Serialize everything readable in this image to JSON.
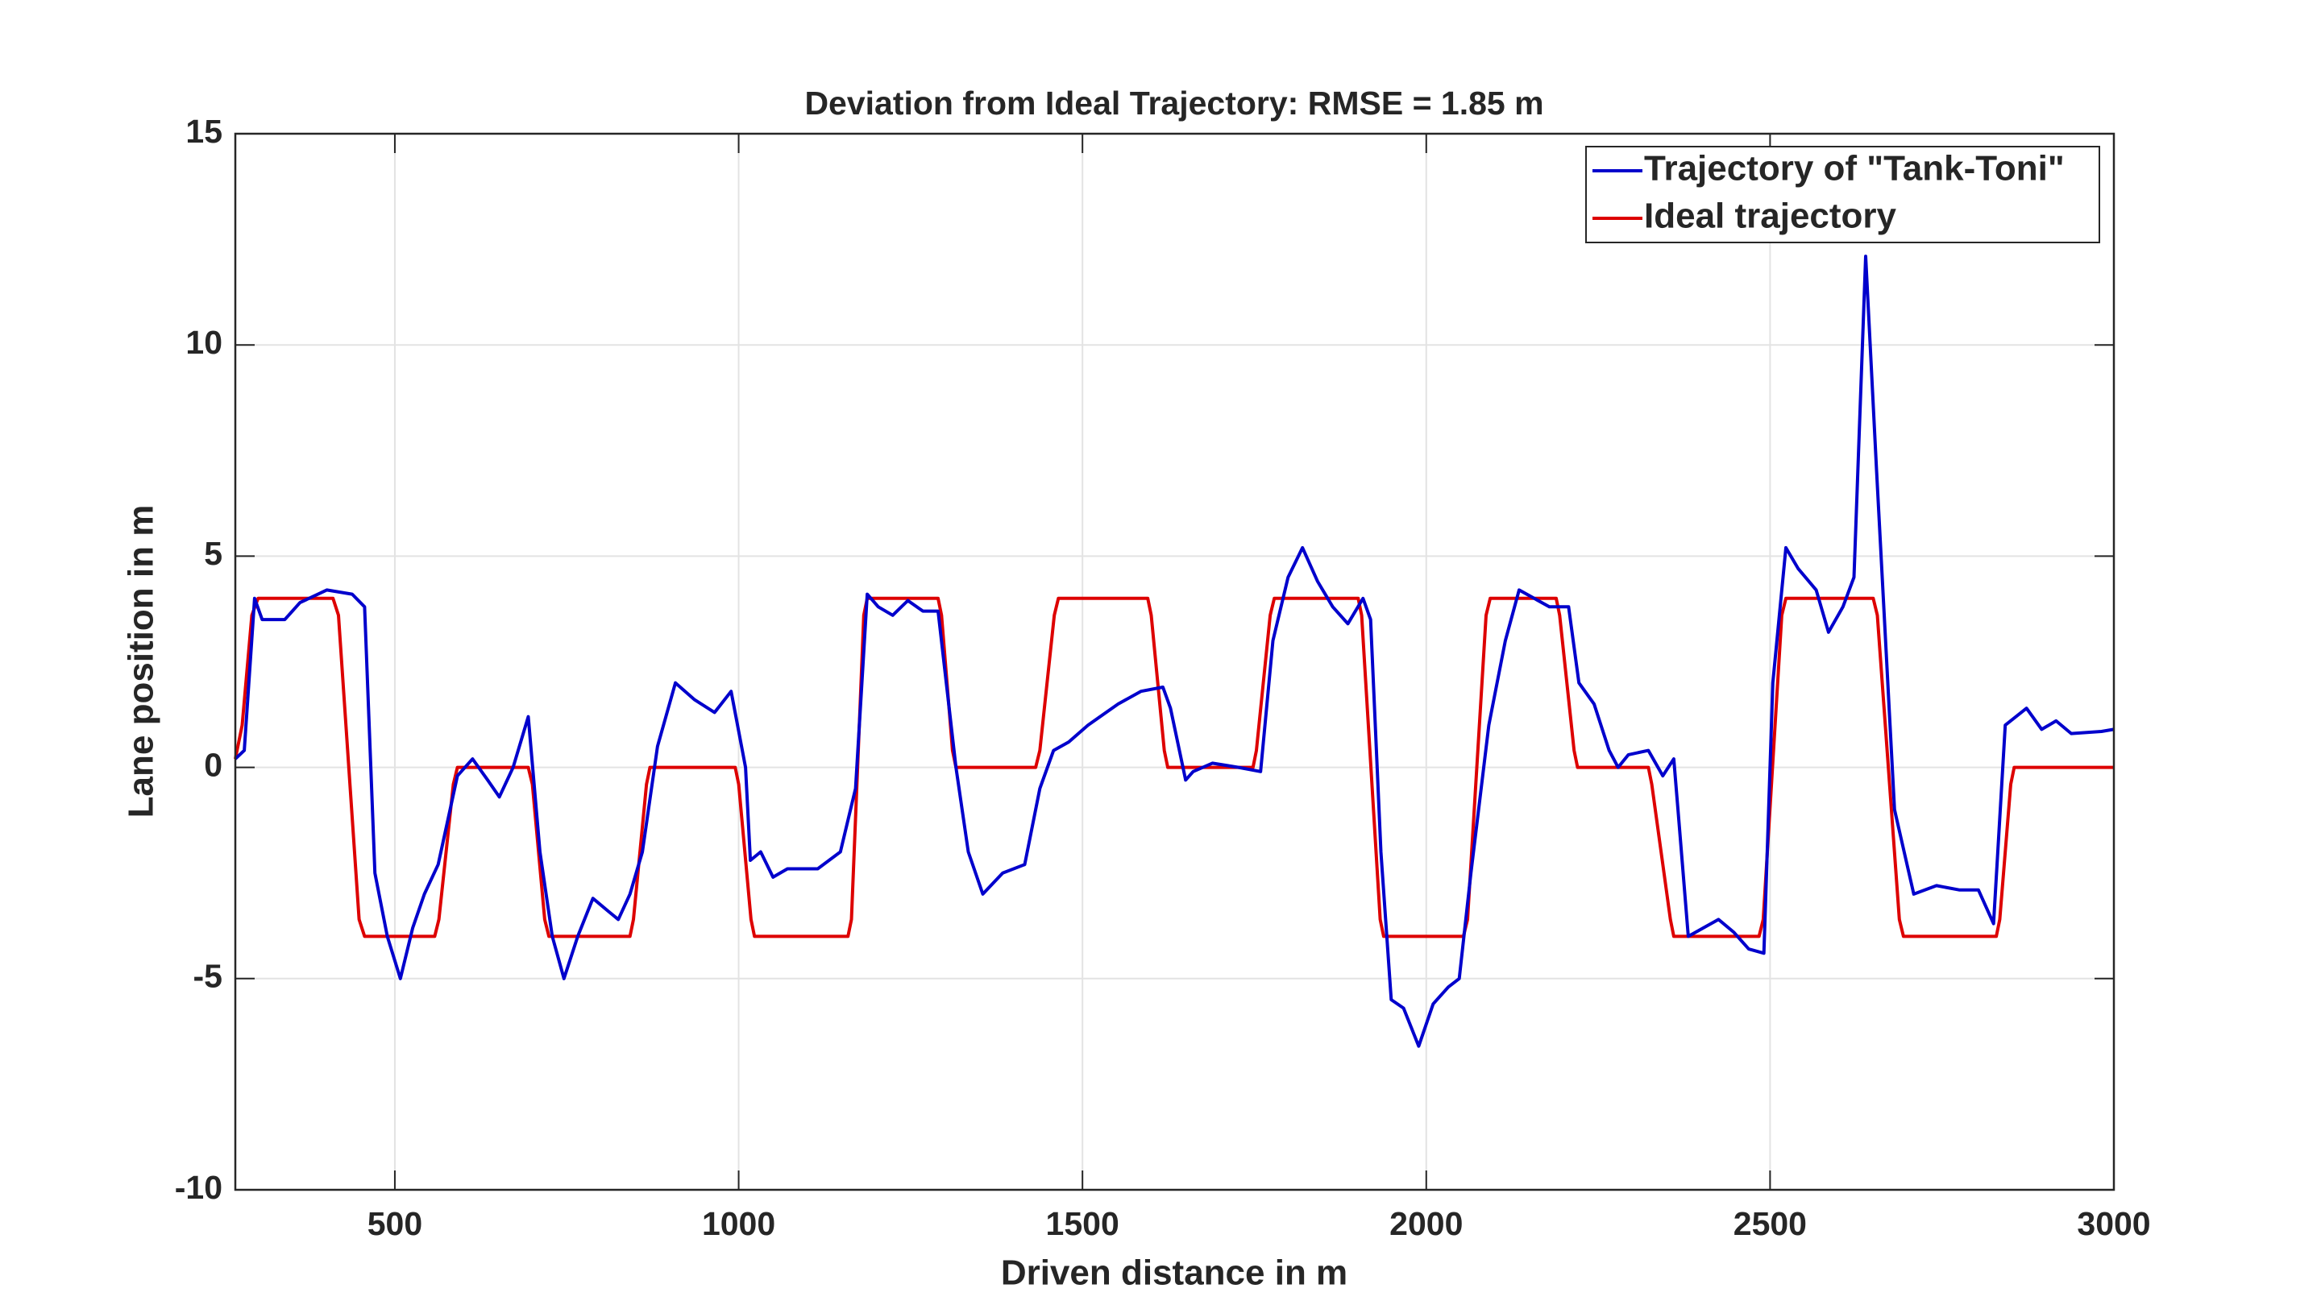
{
  "chart_data": {
    "type": "line",
    "title": "Deviation from Ideal Trajectory: RMSE = 1.85 m",
    "x_label": "Driven distance in m",
    "y_label": "Lane position in m",
    "xlim": [
      268,
      3000
    ],
    "ylim": [
      -10,
      15
    ],
    "xticks": [
      500,
      1000,
      1500,
      2000,
      2500,
      3000
    ],
    "yticks": [
      -10,
      -5,
      0,
      5,
      10,
      15
    ],
    "grid": true,
    "legend": "upper right",
    "series": [
      {
        "name": "Trajectory of \"Tank-Toni\"",
        "color": "#0000cc",
        "x": [
          268,
          281,
          296,
          307,
          340,
          362,
          401,
          438,
          456,
          471,
          489,
          508,
          526,
          543,
          563,
          591,
          613,
          635,
          652,
          672,
          694,
          711,
          729,
          746,
          766,
          788,
          810,
          825,
          842,
          860,
          882,
          908,
          936,
          965,
          989,
          1010,
          1017,
          1032,
          1050,
          1071,
          1115,
          1148,
          1170,
          1187,
          1203,
          1224,
          1246,
          1268,
          1290,
          1316,
          1334,
          1355,
          1384,
          1416,
          1438,
          1458,
          1480,
          1508,
          1552,
          1585,
          1617,
          1628,
          1650,
          1661,
          1689,
          1727,
          1759,
          1777,
          1799,
          1820,
          1842,
          1864,
          1886,
          1908,
          1919,
          1934,
          1949,
          1967,
          1989,
          2010,
          2032,
          2048,
          2065,
          2091,
          2115,
          2135,
          2157,
          2179,
          2207,
          2222,
          2244,
          2266,
          2279,
          2294,
          2323,
          2344,
          2360,
          2366,
          2381,
          2403,
          2425,
          2447,
          2469,
          2491,
          2504,
          2523,
          2541,
          2567,
          2585,
          2606,
          2622,
          2639,
          2655,
          2681,
          2709,
          2742,
          2775,
          2803,
          2825,
          2842,
          2873,
          2895,
          2916,
          2938,
          2982,
          3000
        ],
        "values": [
          0.2,
          0.4,
          4,
          3.5,
          3.5,
          3.9,
          4.2,
          4.1,
          3.8,
          -2.5,
          -4,
          -5,
          -3.8,
          -3,
          -2.3,
          -0.2,
          0.2,
          -0.3,
          -0.7,
          0,
          1.2,
          -2,
          -4,
          -5,
          -4,
          -3.1,
          -3.4,
          -3.6,
          -3,
          -2,
          0.5,
          2,
          1.6,
          1.3,
          1.8,
          0,
          -2.2,
          -2,
          -2.6,
          -2.4,
          -2.4,
          -2,
          -0.5,
          4.1,
          3.8,
          3.6,
          3.95,
          3.7,
          3.7,
          0,
          -2,
          -3,
          -2.5,
          -2.3,
          -0.5,
          0.4,
          0.6,
          1,
          1.5,
          1.8,
          1.9,
          1.4,
          -0.3,
          -0.1,
          0.1,
          0,
          -0.1,
          3,
          4.5,
          5.2,
          4.4,
          3.8,
          3.4,
          4,
          3.5,
          -2,
          -5.5,
          -5.7,
          -6.6,
          -5.6,
          -5.2,
          -5,
          -2.5,
          1,
          3,
          4.2,
          4,
          3.8,
          3.8,
          2,
          1.5,
          0.4,
          0,
          0.3,
          0.4,
          -0.2,
          0.2,
          -1,
          -4,
          -3.8,
          -3.6,
          -3.9,
          -4.3,
          -4.4,
          2,
          5.2,
          4.7,
          4.2,
          3.2,
          3.8,
          4.5,
          12.1,
          7,
          -1,
          -3,
          -2.8,
          -2.9,
          -2.9,
          -3.7,
          1,
          1.4,
          0.9,
          1.1,
          0.8,
          0.85,
          0.9
        ]
      },
      {
        "name": "Ideal trajectory",
        "color": "#dd0000",
        "x": [
          268,
          278,
          292,
          301,
          410,
          418,
          448,
          456,
          558,
          564,
          585,
          591,
          694,
          700,
          718,
          724,
          842,
          847,
          866,
          871,
          995,
          1000,
          1018,
          1023,
          1159,
          1164,
          1182,
          1187,
          1290,
          1295,
          1311,
          1316,
          1432,
          1438,
          1459,
          1465,
          1595,
          1600,
          1619,
          1624,
          1748,
          1753,
          1773,
          1779,
          1901,
          1906,
          1933,
          1938,
          2054,
          2060,
          2087,
          2093,
          2189,
          2194,
          2215,
          2220,
          2323,
          2328,
          2355,
          2360,
          2484,
          2490,
          2517,
          2523,
          2650,
          2656,
          2688,
          2694,
          2829,
          2834,
          2850,
          2855,
          3000
        ],
        "values": [
          0.2,
          1,
          3.6,
          4,
          4,
          3.6,
          -3.6,
          -4,
          -4,
          -3.6,
          -0.4,
          0,
          0,
          -0.4,
          -3.6,
          -4,
          -4,
          -3.6,
          -0.4,
          0,
          0,
          -0.4,
          -3.6,
          -4,
          -4,
          -3.6,
          3.6,
          4,
          4,
          3.6,
          0.4,
          0,
          0,
          0.4,
          3.6,
          4,
          4,
          3.6,
          0.4,
          0,
          0,
          0.4,
          3.6,
          4,
          4,
          3.6,
          -3.6,
          -4,
          -4,
          -3.6,
          3.6,
          4,
          4,
          3.6,
          0.4,
          0,
          0,
          -0.4,
          -3.6,
          -4,
          -4,
          -3.6,
          3.6,
          4,
          4,
          3.6,
          -3.6,
          -4,
          -4,
          -3.6,
          -0.4,
          0,
          0
        ]
      }
    ]
  }
}
